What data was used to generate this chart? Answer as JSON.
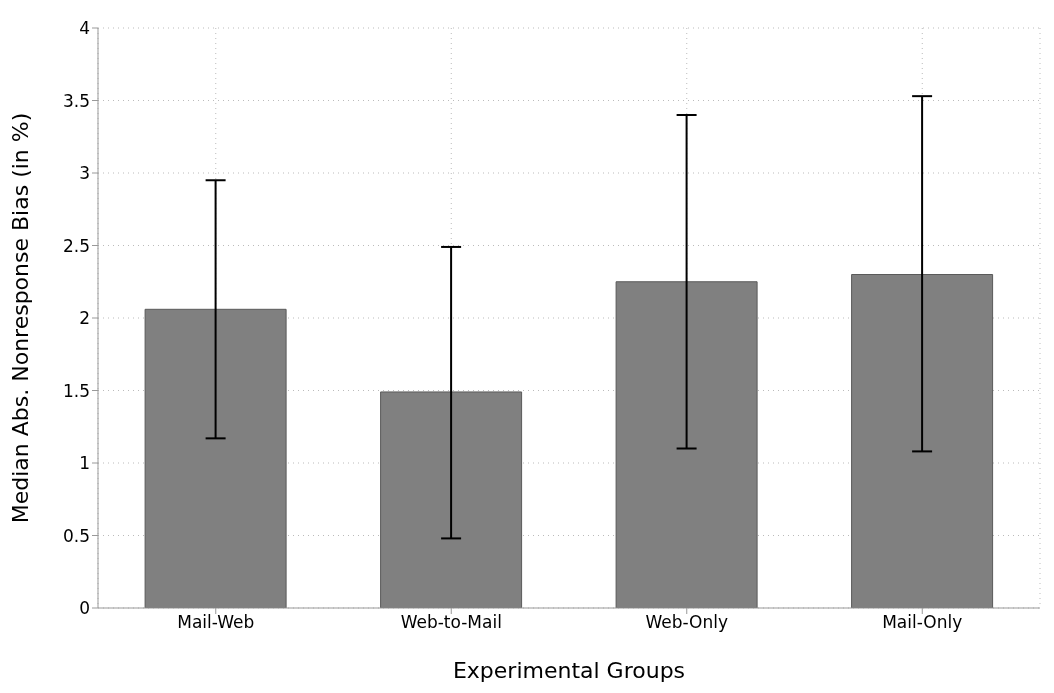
{
  "chart_data": {
    "type": "bar",
    "xlabel": "Experimental Groups",
    "ylabel": "Median Abs. Nonresponse Bias (in %)",
    "categories": [
      "Mail-Web",
      "Web-to-Mail",
      "Web-Only",
      "Mail-Only"
    ],
    "values": [
      2.06,
      1.49,
      2.25,
      2.3
    ],
    "errors": [
      [
        1.17,
        2.95
      ],
      [
        0.48,
        2.49
      ],
      [
        1.1,
        3.4
      ],
      [
        1.08,
        3.53
      ]
    ],
    "color": "#808080",
    "ylim": [
      0,
      4
    ],
    "yticks": [
      0,
      0.5,
      1,
      1.5,
      2,
      2.5,
      3,
      3.5,
      4
    ],
    "grid": true
  }
}
